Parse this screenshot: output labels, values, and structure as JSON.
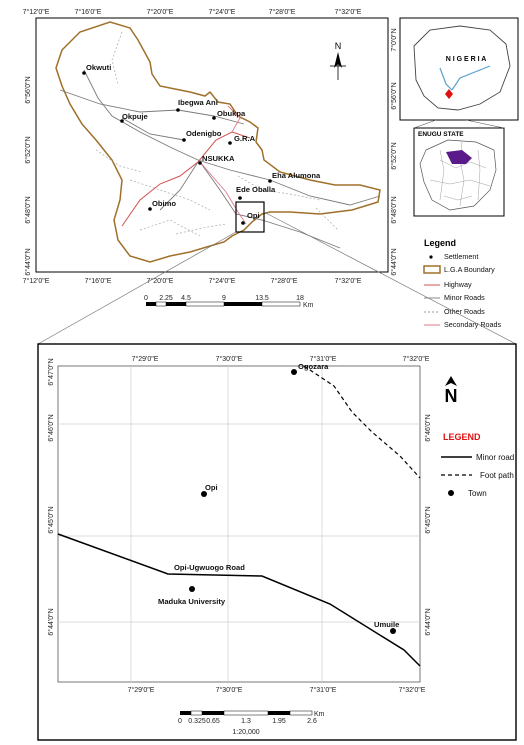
{
  "top_map": {
    "lon_ticks": [
      "7°12'0\"E",
      "7°16'0\"E",
      "7°20'0\"E",
      "7°24'0\"E",
      "7°28'0\"E",
      "7°32'0\"E"
    ],
    "lat_ticks": [
      "6°56'0\"N",
      "6°52'0\"N",
      "6°48'0\"N",
      "6°44'0\"N"
    ],
    "north_symbol": "N",
    "places": [
      {
        "name": "Okwuti"
      },
      {
        "name": "Okpuje"
      },
      {
        "name": "Ibegwa Ani"
      },
      {
        "name": "Obukpa"
      },
      {
        "name": "Odenigbo"
      },
      {
        "name": "G.R.A"
      },
      {
        "name": "NSUKKA"
      },
      {
        "name": "Eha Alumona"
      },
      {
        "name": "Ede Oballa"
      },
      {
        "name": "Obimo"
      },
      {
        "name": "Opi"
      }
    ],
    "scale": {
      "ticks": [
        "0",
        "2.25",
        "4.5",
        "9",
        "13.5",
        "18"
      ],
      "unit": "Km"
    }
  },
  "inset_nigeria": {
    "title": "N I G E R I A",
    "lat_ticks": [
      "7°0'0\"N",
      "6°56'0\"N",
      "6°52'0\"N",
      "6°48'0\"N",
      "6°44'0\"N"
    ]
  },
  "inset_enugu": {
    "title": "ENUGU STATE"
  },
  "top_legend": {
    "title": "Legend",
    "items": [
      {
        "label": "Settlement",
        "symbol": "dot",
        "color": "#000000"
      },
      {
        "label": "L.G.A Boundary",
        "symbol": "box",
        "color": "#a0702a"
      },
      {
        "label": "Highway",
        "symbol": "line",
        "color": "#d0524f"
      },
      {
        "label": "Minor Roads",
        "symbol": "line",
        "color": "#888888"
      },
      {
        "label": "Other Roads",
        "symbol": "dash",
        "color": "#999999"
      },
      {
        "label": "Secondary Roads",
        "symbol": "line",
        "color": "#e07a8a"
      }
    ]
  },
  "detail_map": {
    "lon_ticks": [
      "7°29'0\"E",
      "7°30'0\"E",
      "7°31'0\"E",
      "7°32'0\"E"
    ],
    "lat_ticks": [
      "6°47'0\"N",
      "6°46'0\"N",
      "6°45'0\"N",
      "6°44'0\"N"
    ],
    "north_symbol": "N",
    "places": [
      {
        "name": "Ogozara"
      },
      {
        "name": "Opi"
      },
      {
        "name": "Maduka University"
      },
      {
        "name": "Umuile"
      }
    ],
    "road_label": "Opi-Ugwuogo Road",
    "legend": {
      "title": "LEGEND",
      "title_color": "#e01010",
      "items": [
        {
          "label": "Minor road",
          "symbol": "line"
        },
        {
          "label": "Foot path",
          "symbol": "dash"
        },
        {
          "label": "Town",
          "symbol": "dot"
        }
      ]
    },
    "scale": {
      "ticks": [
        "0",
        "0.325",
        "0.65",
        "1.3",
        "1.95",
        "2.6"
      ],
      "unit": "Km",
      "ratio": "1:20,000"
    }
  },
  "colors": {
    "boundary": "#a0702a",
    "highway": "#d0524f",
    "minor": "#7a7a7a",
    "other": "#a8a8a8",
    "secondary": "#e07a8a",
    "enugu_fill": "#5a1a8a",
    "marker": "#e01010"
  }
}
